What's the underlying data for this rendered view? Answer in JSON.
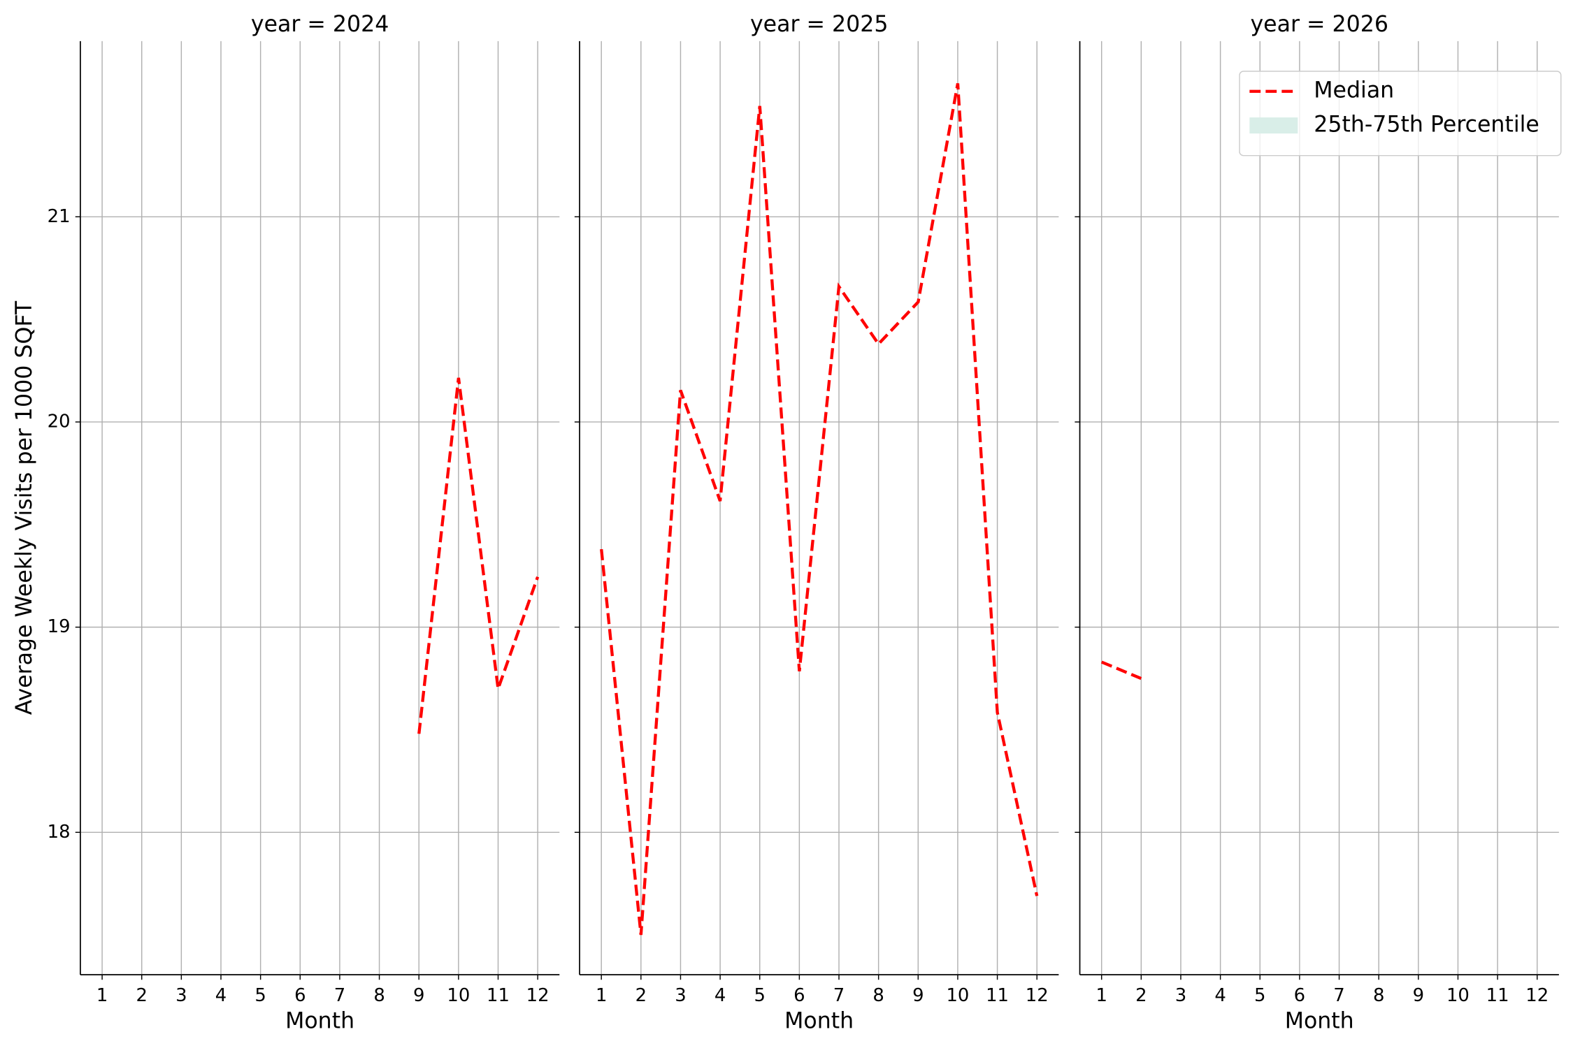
{
  "chart_data": [
    {
      "type": "line",
      "title": "year = 2024",
      "xlabel": "Month",
      "ylabel": "Average Weekly Visits per 1000 SQFT",
      "x": [
        9,
        10,
        11,
        12
      ],
      "series": [
        {
          "color": "#ff0000",
          "values": [
            18.48,
            20.215,
            18.7,
            19.245
          ]
        }
      ],
      "xlim": [
        0.45,
        12.55
      ],
      "xticks": [
        1,
        2,
        3,
        4,
        5,
        6,
        7,
        8,
        9,
        10,
        11,
        12
      ],
      "ylim": [
        17.306,
        21.856
      ],
      "yticks": [
        18,
        19,
        20,
        21
      ],
      "show_ytick_labels": true,
      "grid": true
    },
    {
      "type": "line",
      "title": "year = 2025",
      "xlabel": "Month",
      "x": [
        1,
        2,
        3,
        4,
        5,
        6,
        7,
        8,
        9,
        10,
        11,
        12
      ],
      "series": [
        {
          "color": "#ff0000",
          "values": [
            19.38,
            17.5,
            20.155,
            19.615,
            21.54,
            18.785,
            20.66,
            20.38,
            20.585,
            21.65,
            18.585,
            17.69
          ]
        }
      ],
      "xlim": [
        0.45,
        12.55
      ],
      "xticks": [
        1,
        2,
        3,
        4,
        5,
        6,
        7,
        8,
        9,
        10,
        11,
        12
      ],
      "ylim": [
        17.306,
        21.856
      ],
      "yticks": [
        18,
        19,
        20,
        21
      ],
      "show_ytick_labels": false,
      "grid": true
    },
    {
      "type": "line",
      "title": "year = 2026",
      "xlabel": "Month",
      "x": [
        1,
        2
      ],
      "series": [
        {
          "color": "#ff0000",
          "values": [
            18.83,
            18.75
          ]
        }
      ],
      "xlim": [
        0.45,
        12.55
      ],
      "xticks": [
        1,
        2,
        3,
        4,
        5,
        6,
        7,
        8,
        9,
        10,
        11,
        12
      ],
      "ylim": [
        17.306,
        21.856
      ],
      "yticks": [
        18,
        19,
        20,
        21
      ],
      "show_ytick_labels": false,
      "grid": true,
      "legend": {
        "loc": "upper right",
        "entries": [
          {
            "label": "Median",
            "color": "#ff0000",
            "style": "dashed"
          },
          {
            "label": "25th-75th Percentile",
            "color": "#d9eee8",
            "style": "patch"
          }
        ]
      }
    }
  ]
}
